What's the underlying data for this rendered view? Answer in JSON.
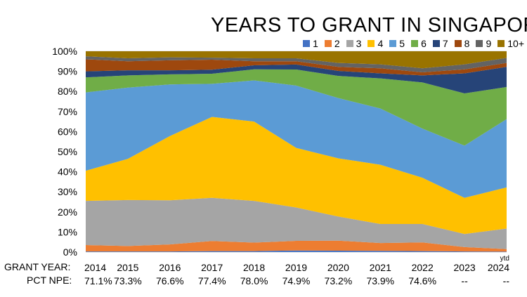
{
  "chart_data": {
    "type": "area",
    "stacked": true,
    "normalized": true,
    "title": "YEARS TO GRANT IN SINGAPORE",
    "categories": [
      "2014",
      "2015",
      "2016",
      "2017",
      "2018",
      "2019",
      "2020",
      "2021",
      "2022",
      "2023",
      "2024"
    ],
    "ytd_marker": "ytd",
    "x_row_label": "GRANT YEAR:",
    "x_row2_label": "PCT NPE:",
    "pct_npe": [
      "71.1%",
      "73.3%",
      "76.6%",
      "77.4%",
      "78.0%",
      "74.9%",
      "73.2%",
      "73.9%",
      "74.6%",
      "--",
      "--"
    ],
    "yticks": [
      "0%",
      "10%",
      "20%",
      "30%",
      "40%",
      "50%",
      "60%",
      "70%",
      "80%",
      "90%",
      "100%"
    ],
    "ylim": [
      0,
      100
    ],
    "legend_position": "top-right",
    "series": [
      {
        "name": "1",
        "color": "#4472c4",
        "values": [
          0.3,
          0.3,
          0.3,
          0.5,
          0.5,
          0.8,
          0.7,
          0.6,
          0.5,
          0.3,
          0.2
        ]
      },
      {
        "name": "2",
        "color": "#ed7d31",
        "values": [
          3.2,
          2.7,
          3.5,
          5.0,
          4.2,
          4.8,
          5.0,
          3.9,
          4.3,
          2.2,
          1.3
        ]
      },
      {
        "name": "3",
        "color": "#a5a5a5",
        "values": [
          22.0,
          22.9,
          22.0,
          21.5,
          20.8,
          16.6,
          12.0,
          9.5,
          9.2,
          6.5,
          10.2
        ]
      },
      {
        "name": "4",
        "color": "#ffc000",
        "values": [
          15.0,
          20.5,
          32.0,
          40.3,
          39.5,
          29.7,
          29.0,
          29.5,
          23.0,
          18.0,
          20.5
        ]
      },
      {
        "name": "5",
        "color": "#5b9bd5",
        "values": [
          39.0,
          35.5,
          25.7,
          16.5,
          20.5,
          31.0,
          30.0,
          28.0,
          24.5,
          26.0,
          34.0
        ]
      },
      {
        "name": "6",
        "color": "#70ad47",
        "values": [
          7.5,
          6.1,
          5.0,
          5.0,
          5.5,
          8.0,
          11.0,
          15.0,
          23.0,
          26.0,
          16.0
        ]
      },
      {
        "name": "7",
        "color": "#264478",
        "values": [
          3.0,
          2.5,
          2.0,
          2.0,
          2.0,
          2.5,
          2.5,
          2.5,
          3.5,
          10.0,
          10.0
        ]
      },
      {
        "name": "8",
        "color": "#9e480e",
        "values": [
          6.0,
          4.5,
          5.0,
          5.0,
          2.0,
          1.6,
          2.0,
          2.5,
          1.5,
          2.0,
          2.0
        ]
      },
      {
        "name": "9",
        "color": "#636363",
        "values": [
          1.5,
          1.5,
          1.5,
          1.0,
          1.5,
          1.5,
          2.0,
          2.0,
          2.0,
          2.5,
          2.5
        ]
      },
      {
        "name": "10+",
        "color": "#997300",
        "values": [
          2.5,
          3.5,
          3.0,
          3.2,
          3.5,
          3.5,
          5.8,
          6.5,
          8.5,
          6.5,
          3.3
        ]
      }
    ]
  }
}
